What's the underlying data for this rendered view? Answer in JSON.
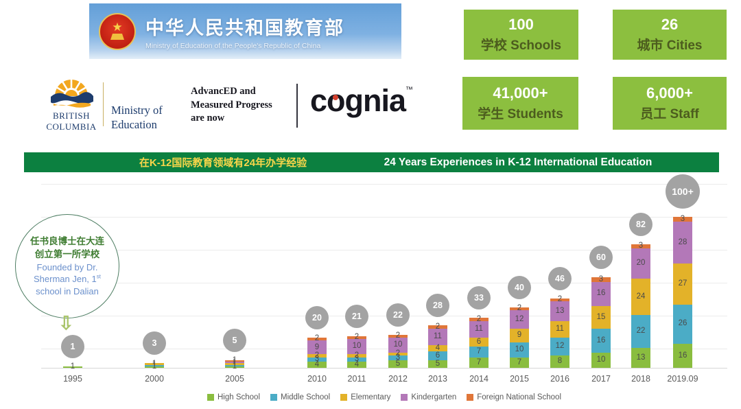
{
  "moe_banner": {
    "title": "中华人民共和国教育部",
    "subtitle": "Ministry of Education of the People's Republic of China"
  },
  "stats": [
    {
      "value": "100",
      "label": "学校 Schools"
    },
    {
      "value": "26",
      "label": "城市 Cities"
    },
    {
      "value": "41,000+",
      "label": "学生 Students"
    },
    {
      "value": "6,000+",
      "label": "员工 Staff"
    }
  ],
  "accreditation": {
    "bc_line1": "BRITISH",
    "bc_line2": "COLUMBIA",
    "ministry_line1": "Ministry of",
    "ministry_line2": "Education",
    "advanced_line1": "AdvancED and",
    "advanced_line2": "Measured Progress",
    "advanced_line3": "are now",
    "cognia_c": "c",
    "cognia_o": "o",
    "cognia_rest": "gnia",
    "cognia_tm": "™"
  },
  "experience_banner": {
    "zh": "在K-12国际教育领域有24年办学经验",
    "en": "24 Years Experiences in K-12 International Education"
  },
  "annotation": {
    "zh_line1": "任书良博士在大连",
    "zh_line2": "创立第一所学校",
    "en_line1": "Founded by Dr.",
    "en_line2": "Sherman Jen, 1",
    "en_sup": "st",
    "en_line3": "school in Dalian"
  },
  "chart_data": {
    "type": "bar",
    "stacked": true,
    "grid": true,
    "legend_position": "bottom",
    "ylim": [
      0,
      110
    ],
    "categories": [
      "1995",
      "2000",
      "2005",
      "2010",
      "2011",
      "2012",
      "2013",
      "2014",
      "2015",
      "2016",
      "2017",
      "2018",
      "2019.09"
    ],
    "totals": [
      "1",
      "3",
      "5",
      "20",
      "21",
      "22",
      "28",
      "33",
      "40",
      "46",
      "60",
      "82",
      "100+"
    ],
    "bubble_color": "#a3a3a3",
    "series": [
      {
        "name": "High School",
        "color": "#8abd3f",
        "values": [
          1,
          1,
          1,
          4,
          4,
          5,
          5,
          7,
          7,
          8,
          10,
          13,
          16
        ]
      },
      {
        "name": "Middle School",
        "color": "#4bacc6",
        "values": [
          0,
          1,
          1,
          3,
          3,
          3,
          6,
          7,
          10,
          12,
          16,
          22,
          26
        ]
      },
      {
        "name": "Elementary",
        "color": "#e3b229",
        "values": [
          0,
          1,
          1,
          2,
          2,
          2,
          4,
          6,
          9,
          11,
          15,
          24,
          27
        ]
      },
      {
        "name": "Kindergarten",
        "color": "#b378b8",
        "values": [
          0,
          0,
          1,
          9,
          10,
          10,
          11,
          11,
          12,
          13,
          16,
          20,
          28
        ]
      },
      {
        "name": "Foreign National School",
        "color": "#e07639",
        "values": [
          0,
          0,
          1,
          2,
          2,
          2,
          2,
          2,
          2,
          2,
          3,
          3,
          3
        ]
      }
    ]
  }
}
